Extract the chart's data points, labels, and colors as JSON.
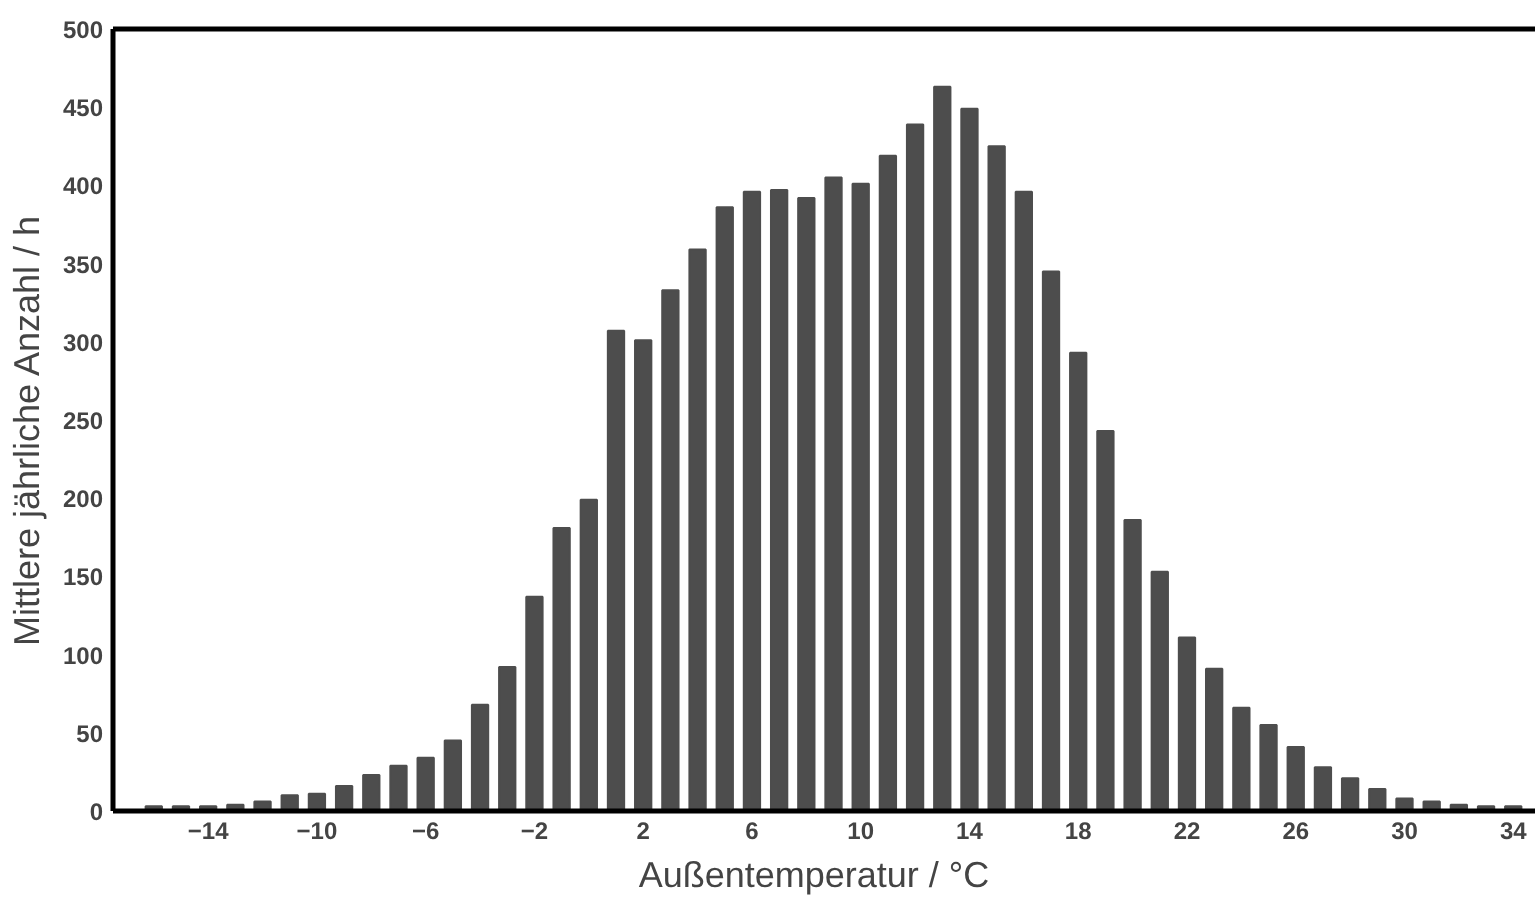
{
  "chart_data": {
    "type": "bar",
    "xlabel": "Außentemperatur  /  °C",
    "ylabel": "Mittlere jährliche Anzahl  /  h",
    "x": [
      -16,
      -15,
      -14,
      -13,
      -12,
      -11,
      -10,
      -9,
      -8,
      -7,
      -6,
      -5,
      -4,
      -3,
      -2,
      -1,
      0,
      1,
      2,
      3,
      4,
      5,
      6,
      7,
      8,
      9,
      10,
      11,
      12,
      13,
      14,
      15,
      16,
      17,
      18,
      19,
      20,
      21,
      22,
      23,
      24,
      25,
      26,
      27,
      28,
      29,
      30,
      31,
      32,
      33,
      34
    ],
    "values": [
      3,
      3,
      3,
      4,
      6,
      10,
      11,
      16,
      23,
      29,
      34,
      45,
      68,
      92,
      137,
      181,
      199,
      307,
      301,
      333,
      359,
      386,
      396,
      397,
      392,
      405,
      401,
      419,
      439,
      463,
      449,
      425,
      396,
      345,
      293,
      243,
      186,
      153,
      111,
      91,
      66,
      55,
      41,
      28,
      21,
      14,
      8,
      6,
      4,
      3,
      3
    ],
    "color": "#4d4d4d",
    "xlim": [
      -17.5,
      34.8
    ],
    "ylim": [
      0,
      500
    ],
    "xticks": [
      -14,
      -10,
      -6,
      -2,
      2,
      6,
      10,
      14,
      18,
      22,
      26,
      30,
      34
    ],
    "yticks": [
      0,
      50,
      100,
      150,
      200,
      250,
      300,
      350,
      400,
      450,
      500
    ],
    "grid": false
  }
}
